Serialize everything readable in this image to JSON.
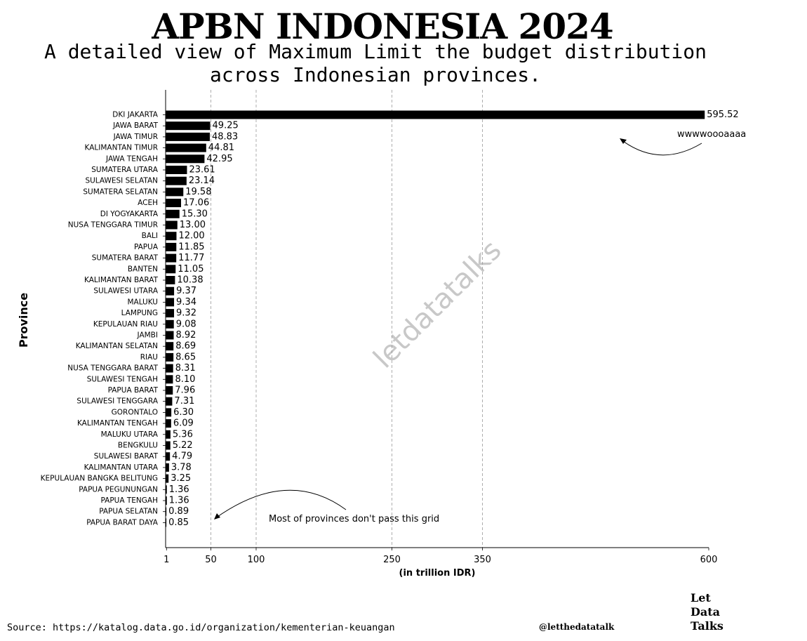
{
  "title": "APBN INDONESIA 2024",
  "subtitle": "A detailed view of Maximum Limit the budget distribution\nacross Indonesian provinces.",
  "source": "Source: https://katalog.data.go.id/organization/kementerian-keuangan",
  "handle": "@letthedatatalk",
  "logo": [
    "Let",
    "Data",
    "Talks"
  ],
  "watermark": "letdatatalks",
  "colors": {
    "bar": "#000000",
    "grid": "#999999",
    "watermark": "#c8c8c8"
  },
  "chart_data": {
    "type": "bar",
    "orientation": "horizontal",
    "xlabel": "(in trillion IDR)",
    "ylabel": "Province",
    "xlim": [
      0,
      600
    ],
    "x_ticks": [
      1,
      50,
      100,
      250,
      350,
      600
    ],
    "grid_lines_x": [
      50,
      100,
      250,
      350
    ],
    "grid": "vertical dashed",
    "categories": [
      "DKI JAKARTA",
      "JAWA BARAT",
      "JAWA TIMUR",
      "KALIMANTAN TIMUR",
      "JAWA TENGAH",
      "SUMATERA UTARA",
      "SULAWESI SELATAN",
      "SUMATERA SELATAN",
      "ACEH",
      "DI YOGYAKARTA",
      "NUSA TENGGARA TIMUR",
      "BALI",
      "PAPUA",
      "SUMATERA BARAT",
      "BANTEN",
      "KALIMANTAN BARAT",
      "SULAWESI UTARA",
      "MALUKU",
      "LAMPUNG",
      "KEPULAUAN RIAU",
      "JAMBI",
      "KALIMANTAN SELATAN",
      "RIAU",
      "NUSA TENGGARA BARAT",
      "SULAWESI TENGAH",
      "PAPUA BARAT",
      "SULAWESI TENGGARA",
      "GORONTALO",
      "KALIMANTAN TENGAH",
      "MALUKU UTARA",
      "BENGKULU",
      "SULAWESI BARAT",
      "KALIMANTAN UTARA",
      "KEPULAUAN BANGKA BELITUNG",
      "PAPUA PEGUNUNGAN",
      "PAPUA TENGAH",
      "PAPUA SELATAN",
      "PAPUA BARAT DAYA"
    ],
    "values": [
      595.52,
      49.25,
      48.83,
      44.81,
      42.95,
      23.61,
      23.14,
      19.58,
      17.06,
      15.3,
      13.0,
      12.0,
      11.85,
      11.77,
      11.05,
      10.38,
      9.37,
      9.34,
      9.32,
      9.08,
      8.92,
      8.69,
      8.65,
      8.31,
      8.1,
      7.96,
      7.31,
      6.3,
      6.09,
      5.36,
      5.22,
      4.79,
      3.78,
      3.25,
      1.36,
      1.36,
      0.89,
      0.85
    ],
    "value_labels": [
      "595.52",
      "49.25",
      "48.83",
      "44.81",
      "42.95",
      "23.61",
      "23.14",
      "19.58",
      "17.06",
      "15.30",
      "13.00",
      "12.00",
      "11.85",
      "11.77",
      "11.05",
      "10.38",
      "9.37",
      "9.34",
      "9.32",
      "9.08",
      "8.92",
      "8.69",
      "8.65",
      "8.31",
      "8.10",
      "7.96",
      "7.31",
      "6.30",
      "6.09",
      "5.36",
      "5.22",
      "4.79",
      "3.78",
      "3.25",
      "1.36",
      "1.36",
      "0.89",
      "0.85"
    ],
    "annotations": [
      {
        "text": "wwwwoooaaaa",
        "points_to": "DKI JAKARTA",
        "position": "top-right"
      },
      {
        "text": "Most of provinces don't pass this grid",
        "points_to": 50,
        "position": "bottom"
      }
    ]
  }
}
